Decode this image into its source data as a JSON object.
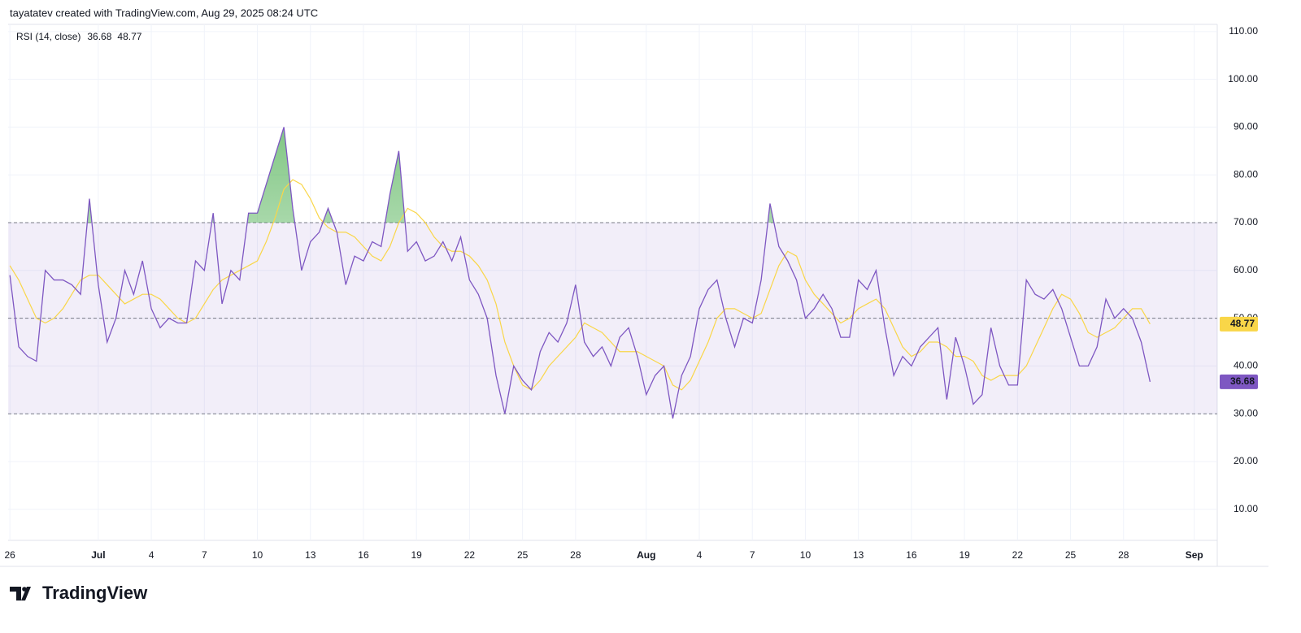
{
  "header": {
    "credit": "tayatatev created with TradingView.com, Aug 29, 2025 08:24 UTC"
  },
  "footer": {
    "logo": "TradingView"
  },
  "chart_data": {
    "type": "line",
    "title": "RSI (14, close)",
    "ylim": [
      3.5,
      111.5
    ],
    "yticks": [
      {
        "value": 10,
        "label": "10.00"
      },
      {
        "value": 20,
        "label": "20.00"
      },
      {
        "value": 30,
        "label": "30.00"
      },
      {
        "value": 40,
        "label": "40.00"
      },
      {
        "value": 50,
        "label": "50.00"
      },
      {
        "value": 60,
        "label": "60.00"
      },
      {
        "value": 70,
        "label": "70.00"
      },
      {
        "value": 80,
        "label": "80.00"
      },
      {
        "value": 90,
        "label": "90.00"
      },
      {
        "value": 100,
        "label": "100.00"
      },
      {
        "value": 110,
        "label": "110.00"
      }
    ],
    "xlim": [
      -0.2,
      136.6
    ],
    "xticks": [
      {
        "value": 0,
        "label": "26"
      },
      {
        "value": 10,
        "label": "Jul"
      },
      {
        "value": 16,
        "label": "4"
      },
      {
        "value": 22,
        "label": "7"
      },
      {
        "value": 28,
        "label": "10"
      },
      {
        "value": 34,
        "label": "13"
      },
      {
        "value": 40,
        "label": "16"
      },
      {
        "value": 46,
        "label": "19"
      },
      {
        "value": 52,
        "label": "22"
      },
      {
        "value": 58,
        "label": "25"
      },
      {
        "value": 64,
        "label": "28"
      },
      {
        "value": 72,
        "label": "Aug"
      },
      {
        "value": 78,
        "label": "4"
      },
      {
        "value": 84,
        "label": "7"
      },
      {
        "value": 90,
        "label": "10"
      },
      {
        "value": 96,
        "label": "13"
      },
      {
        "value": 102,
        "label": "16"
      },
      {
        "value": 108,
        "label": "19"
      },
      {
        "value": 114,
        "label": "22"
      },
      {
        "value": 120,
        "label": "25"
      },
      {
        "value": 126,
        "label": "28"
      },
      {
        "value": 134,
        "label": "Sep"
      }
    ],
    "grid": true,
    "band": [
      30,
      70
    ],
    "midline": 50,
    "band_color": "#7e57c2",
    "overbought_color": "#4caf50",
    "series": [
      {
        "color": "#7e57c2",
        "values": [
          59,
          44,
          42,
          41,
          60,
          58,
          58,
          57,
          55,
          75,
          57,
          45,
          50,
          60,
          55,
          62,
          52,
          48,
          50,
          49,
          49,
          62,
          60,
          72,
          53,
          60,
          58,
          72,
          72,
          78,
          84,
          90,
          73,
          60,
          66,
          68,
          73,
          68,
          57,
          63,
          62,
          66,
          65,
          76,
          85,
          64,
          66,
          62,
          63,
          66,
          62,
          67,
          58,
          55,
          50,
          38,
          30,
          40,
          37,
          35,
          43,
          47,
          45,
          49,
          57,
          45,
          42,
          44,
          40,
          46,
          48,
          42,
          34,
          38,
          40,
          29,
          38,
          42,
          52,
          56,
          58,
          50,
          44,
          50,
          49,
          58,
          74,
          65,
          62,
          58,
          50,
          52,
          55,
          52,
          46,
          46,
          58,
          56,
          60,
          48,
          38,
          42,
          40,
          44,
          46,
          48,
          33,
          46,
          40,
          32,
          34,
          48,
          40,
          36,
          36,
          58,
          55,
          54,
          56,
          52,
          46,
          40,
          40,
          44,
          54,
          50,
          52,
          50,
          45,
          36.68
        ]
      },
      {
        "color": "#f9d648",
        "values": [
          61,
          58,
          54,
          50,
          49,
          50,
          52,
          55,
          58,
          59,
          59,
          57,
          55,
          53,
          54,
          55,
          55,
          54,
          52,
          50,
          49,
          50,
          53,
          56,
          58,
          59,
          60,
          61,
          62,
          66,
          71,
          77,
          79,
          78,
          75,
          71,
          69,
          68,
          68,
          67,
          65,
          63,
          62,
          65,
          70,
          73,
          72,
          70,
          67,
          65,
          64,
          64,
          63,
          61,
          58,
          53,
          45,
          40,
          36,
          35,
          37,
          40,
          42,
          44,
          46,
          49,
          48,
          47,
          45,
          43,
          43,
          43,
          42,
          41,
          40,
          36,
          35,
          37,
          41,
          45,
          50,
          52,
          52,
          51,
          50,
          51,
          56,
          61,
          64,
          63,
          58,
          55,
          53,
          51,
          49,
          50,
          52,
          53,
          54,
          52,
          48,
          44,
          42,
          43,
          45,
          45,
          44,
          42,
          42,
          41,
          38,
          37,
          38,
          38,
          38,
          40,
          44,
          48,
          52,
          55,
          54,
          51,
          47,
          46,
          47,
          48,
          50,
          52,
          52,
          48.77
        ]
      }
    ]
  }
}
